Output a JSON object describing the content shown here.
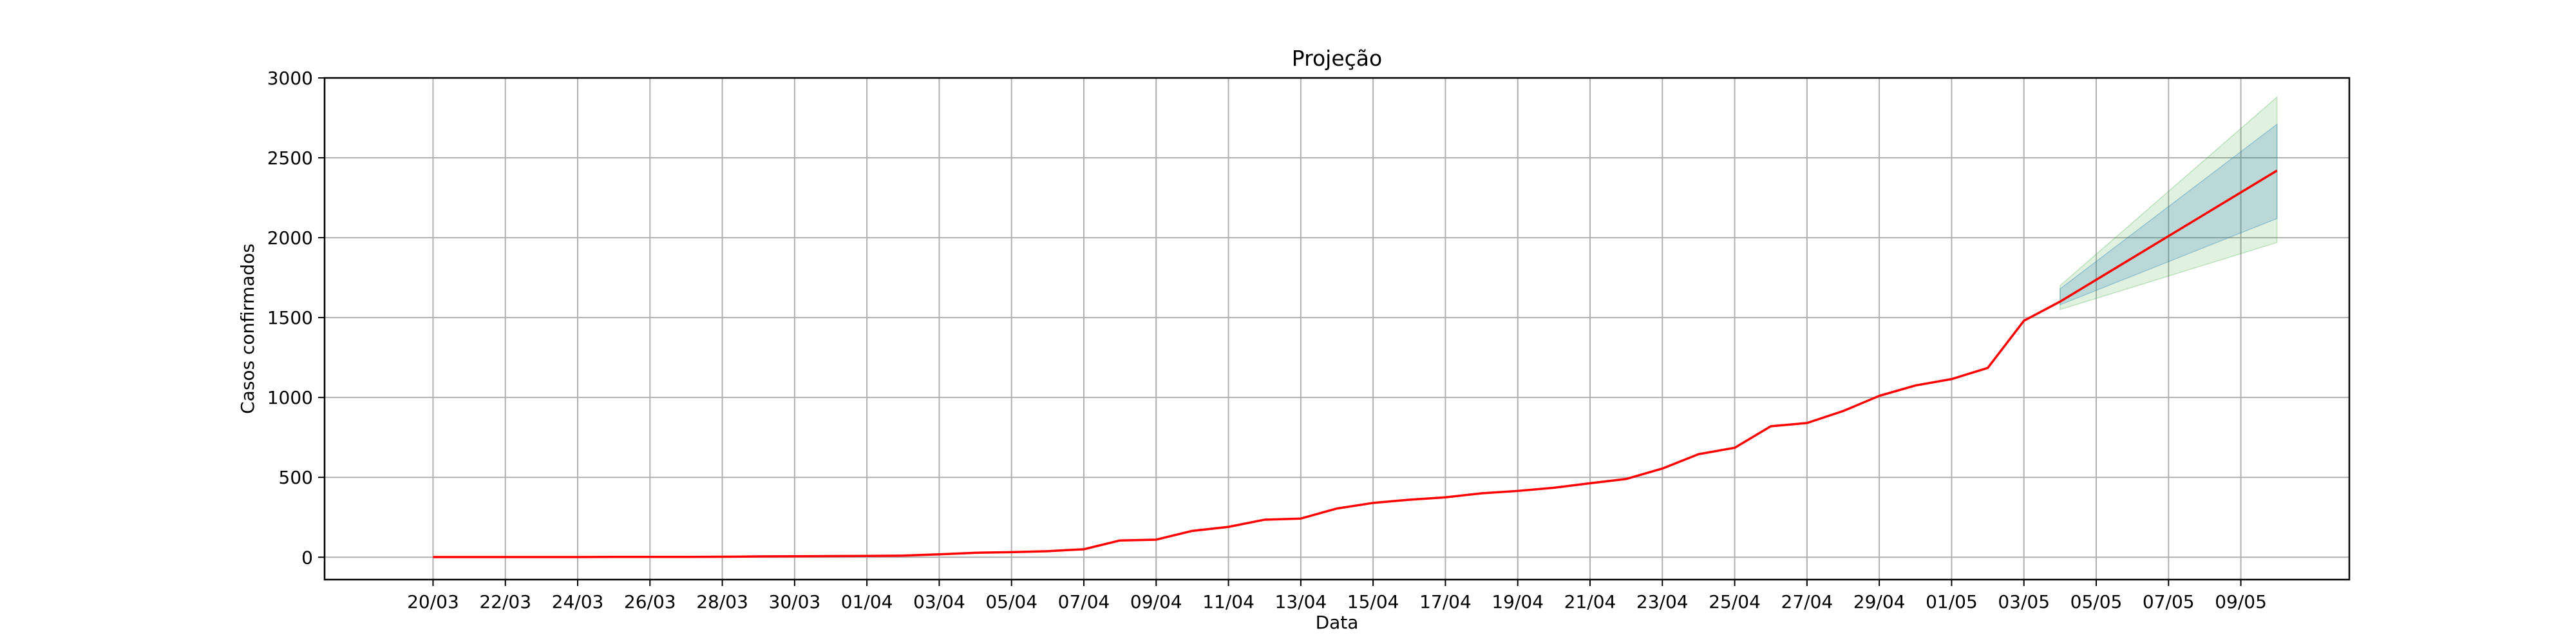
{
  "chart_data": {
    "type": "line",
    "title": "Projeção",
    "xlabel": "Data",
    "ylabel": "Casos confirmados",
    "ylim": [
      -140,
      3000
    ],
    "xlim": [
      "2020-03-17",
      "2020-05-12"
    ],
    "yticks": [
      0,
      500,
      1000,
      1500,
      2000,
      2500,
      3000
    ],
    "xticks": [
      {
        "date": "2020-03-20",
        "label": "20/03"
      },
      {
        "date": "2020-03-22",
        "label": "22/03"
      },
      {
        "date": "2020-03-24",
        "label": "24/03"
      },
      {
        "date": "2020-03-26",
        "label": "26/03"
      },
      {
        "date": "2020-03-28",
        "label": "28/03"
      },
      {
        "date": "2020-03-30",
        "label": "30/03"
      },
      {
        "date": "2020-04-01",
        "label": "01/04"
      },
      {
        "date": "2020-04-03",
        "label": "03/04"
      },
      {
        "date": "2020-04-05",
        "label": "05/04"
      },
      {
        "date": "2020-04-07",
        "label": "07/04"
      },
      {
        "date": "2020-04-09",
        "label": "09/04"
      },
      {
        "date": "2020-04-11",
        "label": "11/04"
      },
      {
        "date": "2020-04-13",
        "label": "13/04"
      },
      {
        "date": "2020-04-15",
        "label": "15/04"
      },
      {
        "date": "2020-04-17",
        "label": "17/04"
      },
      {
        "date": "2020-04-19",
        "label": "19/04"
      },
      {
        "date": "2020-04-21",
        "label": "21/04"
      },
      {
        "date": "2020-04-23",
        "label": "23/04"
      },
      {
        "date": "2020-04-25",
        "label": "25/04"
      },
      {
        "date": "2020-04-27",
        "label": "27/04"
      },
      {
        "date": "2020-04-29",
        "label": "29/04"
      },
      {
        "date": "2020-05-01",
        "label": "01/05"
      },
      {
        "date": "2020-05-03",
        "label": "03/05"
      },
      {
        "date": "2020-05-05",
        "label": "05/05"
      },
      {
        "date": "2020-05-07",
        "label": "07/05"
      },
      {
        "date": "2020-05-09",
        "label": "09/05"
      }
    ],
    "grid": true,
    "series": [
      {
        "color": "#ff0000",
        "points": [
          [
            "2020-03-20",
            1
          ],
          [
            "2020-03-21",
            1
          ],
          [
            "2020-03-22",
            1
          ],
          [
            "2020-03-23",
            1
          ],
          [
            "2020-03-24",
            1
          ],
          [
            "2020-03-25",
            2
          ],
          [
            "2020-03-26",
            2
          ],
          [
            "2020-03-27",
            2
          ],
          [
            "2020-03-28",
            3
          ],
          [
            "2020-03-29",
            5
          ],
          [
            "2020-03-30",
            6
          ],
          [
            "2020-03-31",
            7
          ],
          [
            "2020-04-01",
            8
          ],
          [
            "2020-04-02",
            10
          ],
          [
            "2020-04-03",
            18
          ],
          [
            "2020-04-04",
            28
          ],
          [
            "2020-04-05",
            32
          ],
          [
            "2020-04-06",
            38
          ],
          [
            "2020-04-07",
            50
          ],
          [
            "2020-04-08",
            105
          ],
          [
            "2020-04-09",
            110
          ],
          [
            "2020-04-10",
            165
          ],
          [
            "2020-04-11",
            190
          ],
          [
            "2020-04-12",
            235
          ],
          [
            "2020-04-13",
            242
          ],
          [
            "2020-04-14",
            305
          ],
          [
            "2020-04-15",
            340
          ],
          [
            "2020-04-16",
            360
          ],
          [
            "2020-04-17",
            375
          ],
          [
            "2020-04-18",
            400
          ],
          [
            "2020-04-19",
            415
          ],
          [
            "2020-04-20",
            435
          ],
          [
            "2020-04-21",
            463
          ],
          [
            "2020-04-22",
            490
          ],
          [
            "2020-04-23",
            555
          ],
          [
            "2020-04-24",
            645
          ],
          [
            "2020-04-25",
            685
          ],
          [
            "2020-04-26",
            820
          ],
          [
            "2020-04-27",
            840
          ],
          [
            "2020-04-28",
            915
          ],
          [
            "2020-04-29",
            1010
          ],
          [
            "2020-04-30",
            1075
          ],
          [
            "2020-05-01",
            1115
          ],
          [
            "2020-05-02",
            1185
          ],
          [
            "2020-05-03",
            1480
          ],
          [
            "2020-05-04",
            1600
          ],
          [
            "2020-05-10",
            2420
          ]
        ]
      }
    ],
    "bands": [
      {
        "color": "#2ca02c",
        "opacity": 0.15,
        "x": [
          "2020-05-04",
          "2020-05-10"
        ],
        "lower": [
          1550,
          1970
        ],
        "upper": [
          1700,
          2880
        ]
      },
      {
        "color": "#1f77b4",
        "opacity": 0.2,
        "x": [
          "2020-05-04",
          "2020-05-10"
        ],
        "lower": [
          1580,
          2120
        ],
        "upper": [
          1680,
          2710
        ]
      }
    ],
    "axes_color": "#000000",
    "grid_color": "#b0b0b0"
  }
}
